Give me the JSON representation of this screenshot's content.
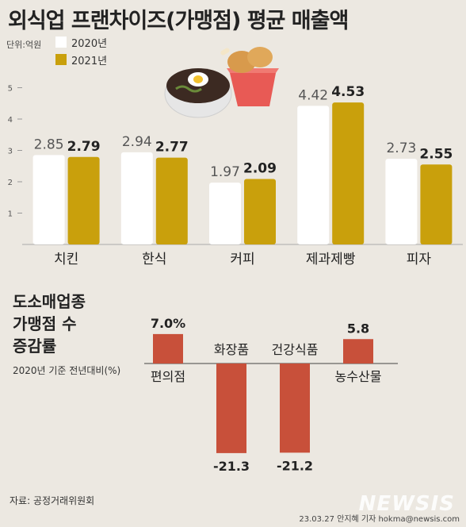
{
  "title": "외식업 프랜차이즈(가맹점) 평균 매출액",
  "unit": "단위:억원",
  "colors": {
    "y2020": "#ffffff",
    "y2021": "#c9a00c",
    "bar2": "#c8503a",
    "grid": "#bbbbbb"
  },
  "chart_data": [
    {
      "type": "bar",
      "categories": [
        "치킨",
        "한식",
        "커피",
        "제과제빵",
        "피자"
      ],
      "series": [
        {
          "name": "2020년",
          "values": [
            2.85,
            2.94,
            1.97,
            4.42,
            2.73
          ]
        },
        {
          "name": "2021년",
          "values": [
            2.79,
            2.77,
            2.09,
            4.53,
            2.55
          ]
        }
      ],
      "value_labels": [
        [
          "2.85",
          "2.94",
          "1.97",
          "4.42",
          "2.73"
        ],
        [
          "2.79",
          "2.77",
          "2.09",
          "4.53",
          "2.55"
        ]
      ],
      "yticks": [
        "1",
        "2",
        "3",
        "4",
        "5"
      ],
      "ylim": [
        0,
        5.5
      ],
      "legend_position": "top-left"
    },
    {
      "type": "bar",
      "title": "도소매업종 가맹점 수 증감률",
      "title_lines": [
        "도소매업종",
        "가맹점 수",
        "증감률"
      ],
      "subtitle": "2020년 기준 전년대비(%)",
      "categories": [
        "편의점",
        "화장품",
        "건강식품",
        "농수산물"
      ],
      "values": [
        7.0,
        -21.3,
        -21.2,
        5.8
      ],
      "value_labels": [
        "7.0%",
        "-21.3",
        "-21.2",
        "5.8"
      ]
    }
  ],
  "source": "자료: 공정거래위원회",
  "credit": "23.03.27 안지혜 기자 hokma@newsis.com",
  "logo": "NEWSIS"
}
